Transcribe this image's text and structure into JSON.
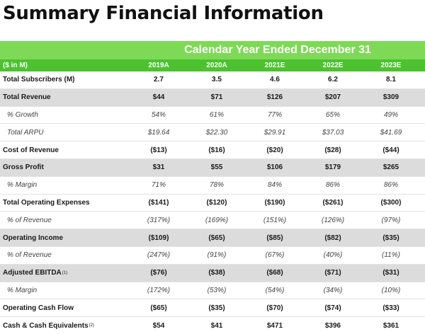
{
  "title": "Summary Financial Information",
  "period_header": "Calendar Year Ended December 31",
  "unit_label": "($ in M)",
  "years": [
    "2019A",
    "2020A",
    "2021E",
    "2022E",
    "2023E"
  ],
  "rows": [
    {
      "label": "Total Subscribers (M)",
      "values": [
        "2.7",
        "3.5",
        "4.6",
        "6.2",
        "8.1"
      ]
    },
    {
      "label": "Total Revenue",
      "values": [
        "$44",
        "$71",
        "$126",
        "$207",
        "$309"
      ]
    },
    {
      "label": "% Growth",
      "values": [
        "54%",
        "61%",
        "77%",
        "65%",
        "49%"
      ]
    },
    {
      "label": "Total ARPU",
      "values": [
        "$19.64",
        "$22.30",
        "$29.91",
        "$37.03",
        "$41.69"
      ]
    },
    {
      "label": "Cost of Revenue",
      "values": [
        "($13)",
        "($16)",
        "($20)",
        "($28)",
        "($44)"
      ]
    },
    {
      "label": "Gross Profit",
      "values": [
        "$31",
        "$55",
        "$106",
        "$179",
        "$265"
      ]
    },
    {
      "label": "% Margin",
      "values": [
        "71%",
        "78%",
        "84%",
        "86%",
        "86%"
      ]
    },
    {
      "label": "Total Operating Expenses",
      "values": [
        "($141)",
        "($120)",
        "($190)",
        "($261)",
        "($300)"
      ]
    },
    {
      "label": "% of Revenue",
      "values": [
        "(317%)",
        "(169%)",
        "(151%)",
        "(126%)",
        "(97%)"
      ]
    },
    {
      "label": "Operating Income",
      "values": [
        "($109)",
        "($65)",
        "($85)",
        "($82)",
        "($35)"
      ]
    },
    {
      "label": "% of Revenue",
      "values": [
        "(247%)",
        "(91%)",
        "(67%)",
        "(40%)",
        "(11%)"
      ]
    },
    {
      "label": "Adjusted EBITDA",
      "footnote": "(1)",
      "values": [
        "($76)",
        "($38)",
        "($68)",
        "($71)",
        "($31)"
      ]
    },
    {
      "label": "% Margin",
      "values": [
        "(172%)",
        "(53%)",
        "(54%)",
        "(34%)",
        "(10%)"
      ]
    },
    {
      "label": "Operating Cash Flow",
      "values": [
        "($65)",
        "($35)",
        "($70)",
        "($74)",
        "($33)"
      ]
    },
    {
      "label": "Cash & Cash Equivalents",
      "footnote": "(2)",
      "values": [
        "$54",
        "$41",
        "$471",
        "$396",
        "$361"
      ]
    }
  ],
  "colors": {
    "band": "#7ed957",
    "header": "#4cc230",
    "shade": "#dcdcdc"
  }
}
